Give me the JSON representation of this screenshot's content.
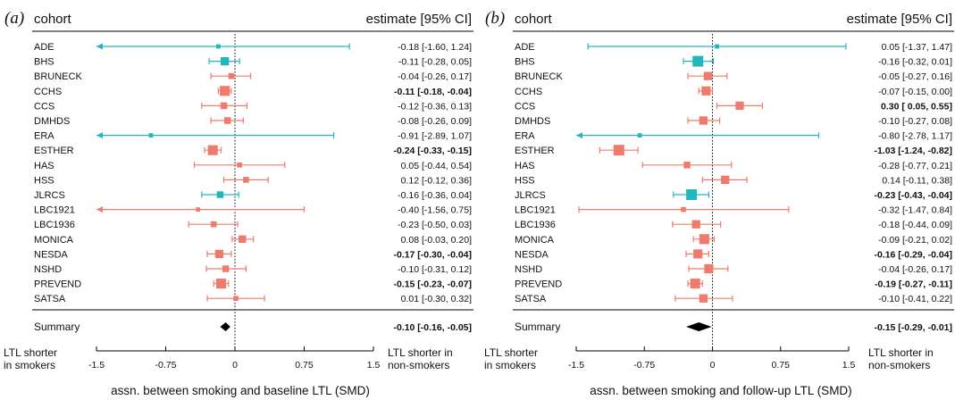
{
  "colors": {
    "blue": "#21b7bd",
    "red": "#ef7b6c",
    "summary": "#000000"
  },
  "panels": [
    {
      "letter": "(a)",
      "header_left": "cohort",
      "header_right": "estimate [95% CI]",
      "summary_label": "Summary",
      "left_note": [
        "LTL shorter",
        "in smokers"
      ],
      "right_note": [
        "LTL shorter in",
        "non-smokers"
      ],
      "x_title": "assn. between smoking and baseline LTL (SMD)",
      "chart_data": {
        "type": "forest",
        "xlim": [
          -1.5,
          1.5
        ],
        "ticks": [
          -1.5,
          -0.75,
          0,
          0.75,
          1.5
        ],
        "tick_labels": [
          "-1.5",
          "-0.75",
          "0",
          "0.75",
          "1.5"
        ],
        "rows": [
          {
            "cohort": "ADE",
            "est": -0.18,
            "lo": -1.6,
            "hi": 1.24,
            "weight": 0.2,
            "color": "blue",
            "text": "-0.18 [-1.60, 1.24]",
            "bold": false
          },
          {
            "cohort": "BHS",
            "est": -0.11,
            "lo": -0.28,
            "hi": 0.05,
            "weight": 0.7,
            "color": "blue",
            "text": "-0.11 [-0.28, 0.05]",
            "bold": false
          },
          {
            "cohort": "BRUNECK",
            "est": -0.04,
            "lo": -0.26,
            "hi": 0.17,
            "weight": 0.4,
            "color": "red",
            "text": "-0.04 [-0.26, 0.17]",
            "bold": false
          },
          {
            "cohort": "CCHS",
            "est": -0.11,
            "lo": -0.18,
            "hi": -0.04,
            "weight": 0.9,
            "color": "red",
            "text": "-0.11 [-0.18, -0.04]",
            "bold": true
          },
          {
            "cohort": "CCS",
            "est": -0.12,
            "lo": -0.36,
            "hi": 0.13,
            "weight": 0.5,
            "color": "red",
            "text": "-0.12 [-0.36, 0.13]",
            "bold": false
          },
          {
            "cohort": "DMHDS",
            "est": -0.08,
            "lo": -0.26,
            "hi": 0.09,
            "weight": 0.5,
            "color": "red",
            "text": "-0.08 [-0.26, 0.09]",
            "bold": false
          },
          {
            "cohort": "ERA",
            "est": -0.91,
            "lo": -2.89,
            "hi": 1.07,
            "weight": 0.2,
            "color": "blue",
            "text": "-0.91 [-2.89, 1.07]",
            "bold": false
          },
          {
            "cohort": "ESTHER",
            "est": -0.24,
            "lo": -0.33,
            "hi": -0.15,
            "weight": 0.9,
            "color": "red",
            "text": "-0.24 [-0.33, -0.15]",
            "bold": true
          },
          {
            "cohort": "HAS",
            "est": 0.05,
            "lo": -0.44,
            "hi": 0.54,
            "weight": 0.3,
            "color": "red",
            "text": "0.05 [-0.44, 0.54]",
            "bold": false
          },
          {
            "cohort": "HSS",
            "est": 0.12,
            "lo": -0.12,
            "hi": 0.36,
            "weight": 0.4,
            "color": "red",
            "text": "0.12 [-0.12, 0.36]",
            "bold": false
          },
          {
            "cohort": "JLRCS",
            "est": -0.16,
            "lo": -0.36,
            "hi": 0.04,
            "weight": 0.5,
            "color": "blue",
            "text": "-0.16 [-0.36, 0.04]",
            "bold": false
          },
          {
            "cohort": "LBC1921",
            "est": -0.4,
            "lo": -1.56,
            "hi": 0.75,
            "weight": 0.2,
            "color": "red",
            "text": "-0.40 [-1.56, 0.75]",
            "bold": false
          },
          {
            "cohort": "LBC1936",
            "est": -0.23,
            "lo": -0.5,
            "hi": 0.03,
            "weight": 0.4,
            "color": "red",
            "text": "-0.23 [-0.50, 0.03]",
            "bold": false
          },
          {
            "cohort": "MONICA",
            "est": 0.08,
            "lo": -0.03,
            "hi": 0.2,
            "weight": 0.6,
            "color": "red",
            "text": "0.08 [-0.03, 0.20]",
            "bold": false
          },
          {
            "cohort": "NESDA",
            "est": -0.17,
            "lo": -0.3,
            "hi": -0.04,
            "weight": 0.7,
            "color": "red",
            "text": "-0.17 [-0.30, -0.04]",
            "bold": true
          },
          {
            "cohort": "NSHD",
            "est": -0.1,
            "lo": -0.31,
            "hi": 0.12,
            "weight": 0.5,
            "color": "red",
            "text": "-0.10 [-0.31, 0.12]",
            "bold": false
          },
          {
            "cohort": "PREVEND",
            "est": -0.15,
            "lo": -0.23,
            "hi": -0.07,
            "weight": 0.9,
            "color": "red",
            "text": "-0.15 [-0.23, -0.07]",
            "bold": true
          },
          {
            "cohort": "SATSA",
            "est": 0.01,
            "lo": -0.3,
            "hi": 0.32,
            "weight": 0.3,
            "color": "red",
            "text": "0.01 [-0.30, 0.32]",
            "bold": false
          }
        ],
        "summary": {
          "est": -0.1,
          "lo": -0.16,
          "hi": -0.05,
          "text": "-0.10 [-0.16, -0.05]"
        }
      }
    },
    {
      "letter": "(b)",
      "header_left": "cohort",
      "header_right": "estimate [95% CI]",
      "summary_label": "Summary",
      "left_note": [
        "LTL shorter",
        "in smokers"
      ],
      "right_note": [
        "LTL shorter in",
        "non-smokers"
      ],
      "x_title": "assn. between smoking and follow-up LTL (SMD)",
      "chart_data": {
        "type": "forest",
        "xlim": [
          -1.5,
          1.5
        ],
        "ticks": [
          -1.5,
          -0.75,
          0,
          0.75,
          1.5
        ],
        "tick_labels": [
          "-1.5",
          "-0.75",
          "0",
          "0.75",
          "1.5"
        ],
        "rows": [
          {
            "cohort": "ADE",
            "est": 0.05,
            "lo": -1.37,
            "hi": 1.47,
            "weight": 0.2,
            "color": "blue",
            "text": "0.05 [-1.37, 1.47]",
            "bold": false
          },
          {
            "cohort": "BHS",
            "est": -0.16,
            "lo": -0.32,
            "hi": 0.01,
            "weight": 1.0,
            "color": "blue",
            "text": "-0.16 [-0.32, 0.01]",
            "bold": false
          },
          {
            "cohort": "BRUNECK",
            "est": -0.05,
            "lo": -0.27,
            "hi": 0.16,
            "weight": 0.7,
            "color": "red",
            "text": "-0.05 [-0.27, 0.16]",
            "bold": false
          },
          {
            "cohort": "CCHS",
            "est": -0.07,
            "lo": -0.15,
            "hi": 0.0,
            "weight": 0.8,
            "color": "red",
            "text": "-0.07 [-0.15, 0.00]",
            "bold": false
          },
          {
            "cohort": "CCS",
            "est": 0.3,
            "lo": 0.05,
            "hi": 0.55,
            "weight": 0.7,
            "color": "red",
            "text": "0.30 [ 0.05, 0.55]",
            "bold": true
          },
          {
            "cohort": "DMHDS",
            "est": -0.1,
            "lo": -0.27,
            "hi": 0.08,
            "weight": 0.7,
            "color": "red",
            "text": "-0.10 [-0.27, 0.08]",
            "bold": false
          },
          {
            "cohort": "ERA",
            "est": -0.8,
            "lo": -2.78,
            "hi": 1.17,
            "weight": 0.2,
            "color": "blue",
            "text": "-0.80 [-2.78, 1.17]",
            "bold": false
          },
          {
            "cohort": "ESTHER",
            "est": -1.03,
            "lo": -1.24,
            "hi": -0.82,
            "weight": 1.0,
            "color": "red",
            "text": "-1.03 [-1.24, -0.82]",
            "bold": true
          },
          {
            "cohort": "HAS",
            "est": -0.28,
            "lo": -0.77,
            "hi": 0.21,
            "weight": 0.5,
            "color": "red",
            "text": "-0.28 [-0.77, 0.21]",
            "bold": false
          },
          {
            "cohort": "HSS",
            "est": 0.14,
            "lo": -0.11,
            "hi": 0.38,
            "weight": 0.7,
            "color": "red",
            "text": "0.14 [-0.11, 0.38]",
            "bold": false
          },
          {
            "cohort": "JLRCS",
            "est": -0.23,
            "lo": -0.43,
            "hi": -0.04,
            "weight": 1.0,
            "color": "blue",
            "text": "-0.23 [-0.43, -0.04]",
            "bold": true
          },
          {
            "cohort": "LBC1921",
            "est": -0.32,
            "lo": -1.47,
            "hi": 0.84,
            "weight": 0.3,
            "color": "red",
            "text": "-0.32 [-1.47, 0.84]",
            "bold": false
          },
          {
            "cohort": "LBC1936",
            "est": -0.18,
            "lo": -0.44,
            "hi": 0.09,
            "weight": 0.7,
            "color": "red",
            "text": "-0.18 [-0.44, 0.09]",
            "bold": false
          },
          {
            "cohort": "MONICA",
            "est": -0.09,
            "lo": -0.21,
            "hi": 0.02,
            "weight": 0.9,
            "color": "red",
            "text": "-0.09 [-0.21, 0.02]",
            "bold": false
          },
          {
            "cohort": "NESDA",
            "est": -0.16,
            "lo": -0.29,
            "hi": -0.04,
            "weight": 0.8,
            "color": "red",
            "text": "-0.16 [-0.29, -0.04]",
            "bold": true
          },
          {
            "cohort": "NSHD",
            "est": -0.04,
            "lo": -0.26,
            "hi": 0.17,
            "weight": 0.8,
            "color": "red",
            "text": "-0.04 [-0.26, 0.17]",
            "bold": false
          },
          {
            "cohort": "PREVEND",
            "est": -0.19,
            "lo": -0.27,
            "hi": -0.11,
            "weight": 0.9,
            "color": "red",
            "text": "-0.19 [-0.27, -0.11]",
            "bold": true
          },
          {
            "cohort": "SATSA",
            "est": -0.1,
            "lo": -0.41,
            "hi": 0.22,
            "weight": 0.7,
            "color": "red",
            "text": "-0.10 [-0.41, 0.22]",
            "bold": false
          }
        ],
        "summary": {
          "est": -0.15,
          "lo": -0.29,
          "hi": -0.01,
          "text": "-0.15 [-0.29, -0.01]"
        }
      }
    }
  ]
}
